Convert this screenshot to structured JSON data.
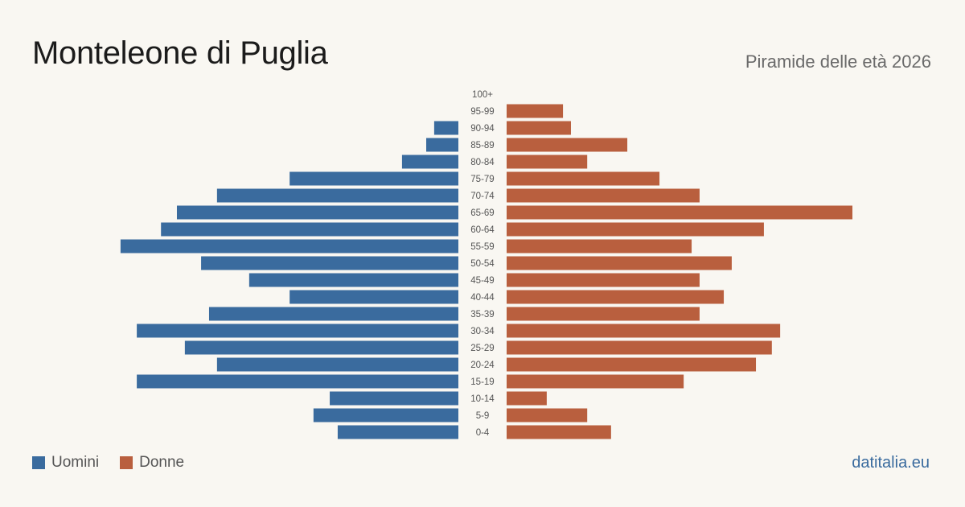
{
  "title": "Monteleone di Puglia",
  "subtitle": "Piramide delle età 2026",
  "source": "datitalia.eu",
  "chart_data": {
    "type": "bar",
    "orientation": "horizontal-pyramid",
    "value_scale": "relative to the longest bar (Donne 65-69 = 1.0)",
    "categories": [
      "100+",
      "95-99",
      "90-94",
      "85-89",
      "80-84",
      "75-79",
      "70-74",
      "65-69",
      "60-64",
      "55-59",
      "50-54",
      "45-49",
      "40-44",
      "35-39",
      "30-34",
      "25-29",
      "20-24",
      "15-19",
      "10-14",
      "5-9",
      "0-4"
    ],
    "series": [
      {
        "name": "Uomini",
        "color": "#3a6b9e",
        "side": "left",
        "values": [
          0,
          0,
          0.07,
          0.093,
          0.163,
          0.488,
          0.698,
          0.814,
          0.86,
          0.977,
          0.744,
          0.605,
          0.488,
          0.721,
          0.93,
          0.791,
          0.698,
          0.93,
          0.372,
          0.419,
          0.349
        ]
      },
      {
        "name": "Donne",
        "color": "#b95f3e",
        "side": "right",
        "values": [
          0,
          0.163,
          0.186,
          0.349,
          0.233,
          0.442,
          0.558,
          1.0,
          0.744,
          0.535,
          0.651,
          0.558,
          0.628,
          0.558,
          0.791,
          0.767,
          0.721,
          0.512,
          0.116,
          0.233,
          0.302
        ]
      }
    ],
    "legend_position": "bottom-left",
    "grid": false
  }
}
